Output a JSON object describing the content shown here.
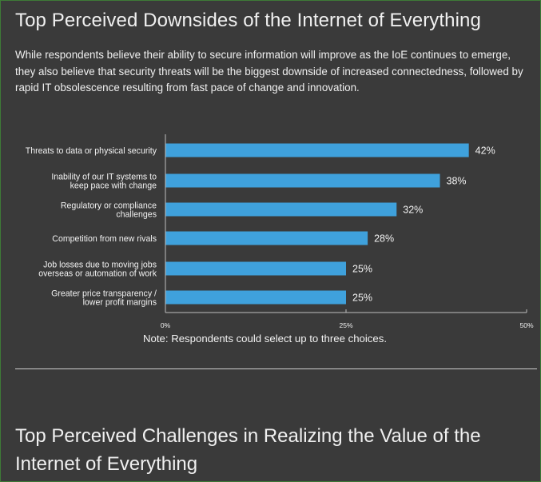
{
  "page": {
    "title": "Top Perceived Downsides of the Internet of Everything",
    "intro": "While respondents believe their ability to secure information will improve as the IoE continues to emerge, they also believe that security threats will be the biggest downside of increased connectedness, followed by rapid IT obsolescence resulting from fast pace of change and innovation.",
    "note": "Note: Respondents could select up to three choices.",
    "next_section_title": "Top Perceived Challenges in Realizing the Value of the Internet of Everything"
  },
  "colors": {
    "background": "#3a3a3a",
    "bar": "#3fa1dc",
    "text": "#f2f2f2",
    "axis": "#bdbdbd"
  },
  "chart_data": {
    "type": "bar",
    "orientation": "horizontal",
    "categories": [
      [
        "Threats to data or physical security"
      ],
      [
        "Inability of our IT systems to",
        "keep pace with change"
      ],
      [
        "Regulatory or compliance",
        "challenges"
      ],
      [
        "Competition from new rivals"
      ],
      [
        "Job losses due to moving jobs",
        "overseas or automation of work"
      ],
      [
        "Greater price transparency /",
        "lower profit margins"
      ]
    ],
    "values": [
      42,
      38,
      32,
      28,
      25,
      25
    ],
    "value_labels": [
      "42%",
      "38%",
      "32%",
      "28%",
      "25%",
      "25%"
    ],
    "xlim": [
      0,
      50
    ],
    "xticks": [
      0,
      25,
      50
    ],
    "xtick_labels": [
      "0%",
      "25%",
      "50%"
    ],
    "title": "",
    "xlabel": "",
    "ylabel": "",
    "grid": false,
    "legend": "none"
  }
}
